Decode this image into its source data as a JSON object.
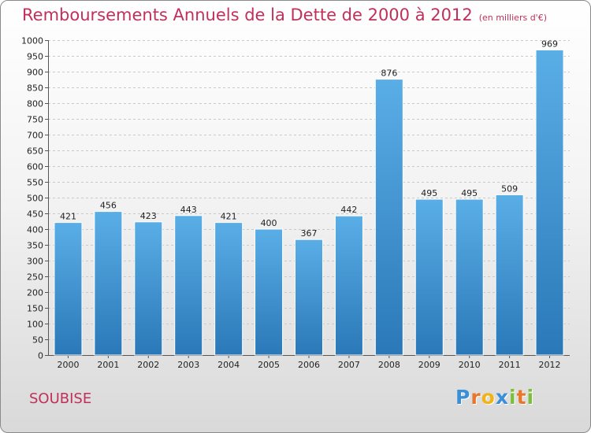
{
  "chart_data": {
    "type": "bar",
    "title": "Remboursements Annuels de la Dette de 2000 à 2012",
    "subtitle": "(en milliers d'€)",
    "categories": [
      "2000",
      "2001",
      "2002",
      "2003",
      "2004",
      "2005",
      "2006",
      "2007",
      "2008",
      "2009",
      "2010",
      "2011",
      "2012"
    ],
    "values": [
      421,
      456,
      423,
      443,
      421,
      400,
      367,
      442,
      876,
      495,
      495,
      509,
      969
    ],
    "ylim": [
      0,
      1000
    ],
    "ytick_step": 50,
    "grid": true,
    "bar_color_top": "#5aaee6",
    "bar_color_bottom": "#2a78b8"
  },
  "commune": "SOUBISE",
  "logo": {
    "letters": [
      "P",
      "r",
      "o",
      "x",
      "i",
      "t",
      "i"
    ],
    "colors": [
      "#3a8fd6",
      "#e8762c",
      "#f0b41a",
      "#3a8fd6",
      "#7cbf3a",
      "#e8762c",
      "#7cbf3a"
    ]
  }
}
